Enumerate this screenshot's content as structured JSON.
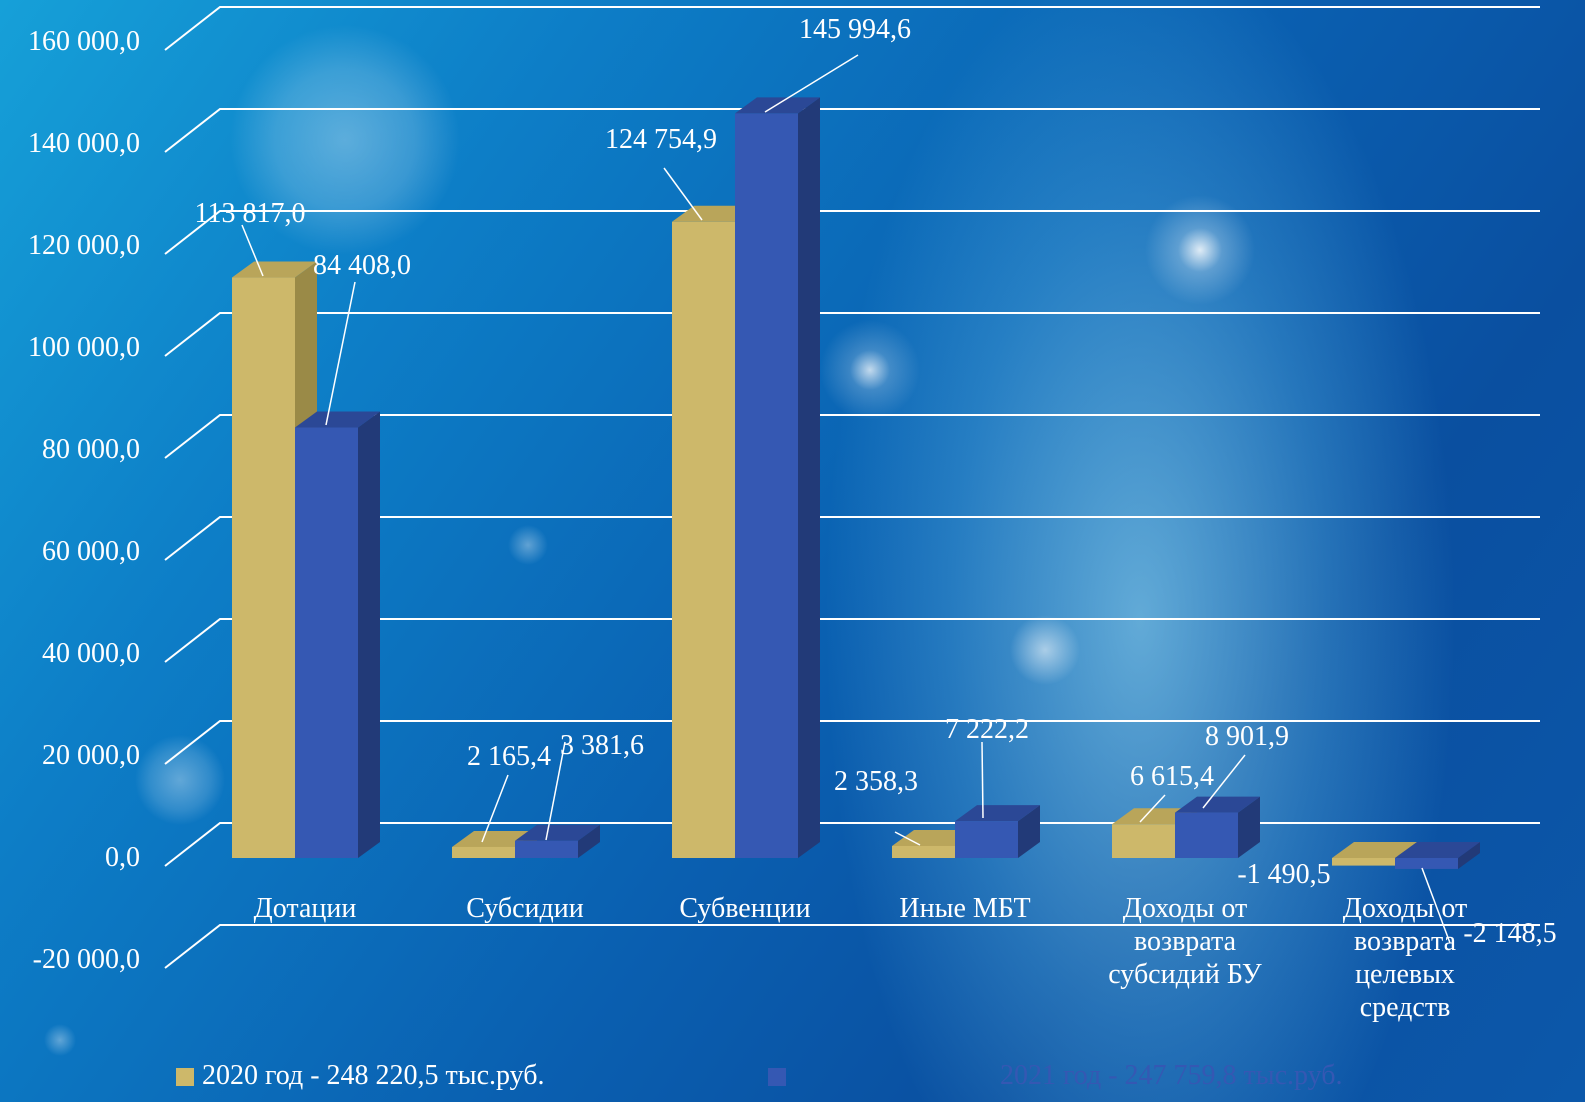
{
  "chart_data": {
    "type": "bar",
    "categories": [
      [
        "Дотации"
      ],
      [
        "Субсидии"
      ],
      [
        "Субвенции"
      ],
      [
        "Иные МБТ"
      ],
      [
        "Доходы от",
        "возврата",
        "субсидий БУ"
      ],
      [
        "Доходы от",
        "возврата",
        "целевых",
        "средств"
      ]
    ],
    "series": [
      {
        "name": "2020 год - 248 220,5 тыс.руб.",
        "values": [
          113817.0,
          2165.4,
          124754.9,
          2358.3,
          6615.4,
          -1490.5
        ],
        "labels": [
          "113 817,0",
          "2 165,4",
          "124 754,9",
          "2 358,3",
          "6 615,4",
          "-1 490,5"
        ],
        "color": "#cdb86a",
        "side_color": "#9a8a47",
        "top_color": "#b9a55a"
      },
      {
        "name": "2021 год - 247 759,8 тыс.руб.",
        "values": [
          84408.0,
          3381.6,
          145994.6,
          7222.2,
          8901.9,
          -2148.5
        ],
        "labels": [
          "84 408,0",
          "3 381,6",
          "145 994,6",
          "7 222,2",
          "8 901,9",
          "-2 148,5"
        ],
        "color": "#3558b3",
        "side_color": "#223a78",
        "top_color": "#2b4896"
      }
    ],
    "ylim": [
      -20000,
      160000
    ],
    "yticks": [
      "-20 000,0",
      "0,0",
      "20 000,0",
      "40 000,0",
      "60 000,0",
      "80 000,0",
      "100 000,0",
      "120 000,0",
      "140 000,0",
      "160 000,0"
    ],
    "grid": true,
    "legend_position": "bottom"
  },
  "legend": {
    "series_a": "2020 год - 248 220,5 тыс.руб.",
    "series_b": "2021 год - 247 759,8 тыс.руб."
  }
}
